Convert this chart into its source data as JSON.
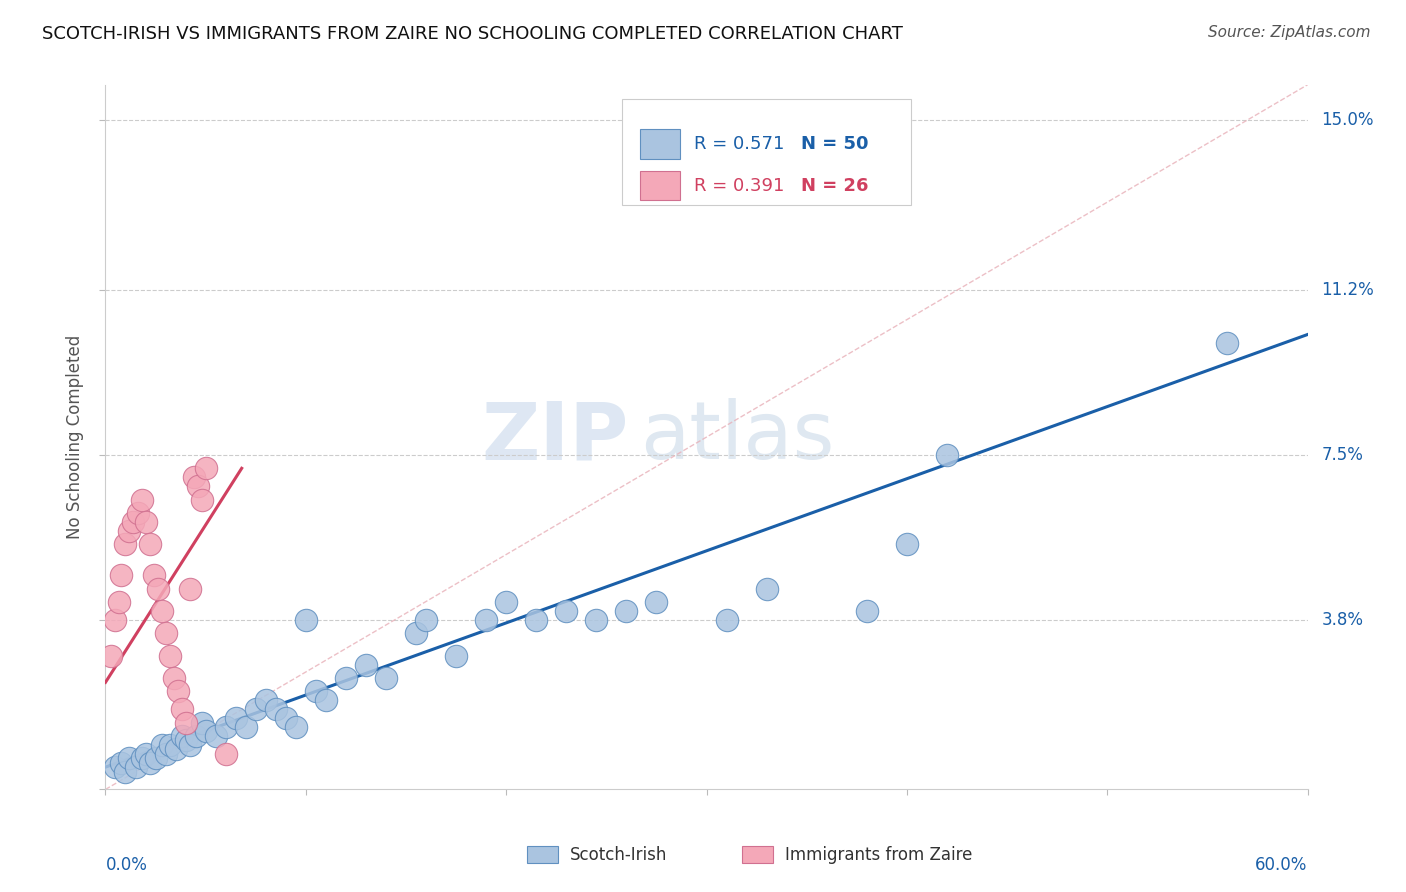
{
  "title": "SCOTCH-IRISH VS IMMIGRANTS FROM ZAIRE NO SCHOOLING COMPLETED CORRELATION CHART",
  "source": "Source: ZipAtlas.com",
  "ylabel": "No Schooling Completed",
  "y_ticks": [
    0.0,
    0.038,
    0.075,
    0.112,
    0.15
  ],
  "y_tick_labels": [
    "",
    "3.8%",
    "7.5%",
    "11.2%",
    "15.0%"
  ],
  "xmin": 0.0,
  "xmax": 0.6,
  "ymin": 0.0,
  "ymax": 0.158,
  "legend_r1": "R = 0.571",
  "legend_n1": "N = 50",
  "legend_r2": "R = 0.391",
  "legend_n2": "N = 26",
  "legend_label1": "Scotch-Irish",
  "legend_label2": "Immigrants from Zaire",
  "color_blue": "#aac4e0",
  "color_blue_edge": "#6090c0",
  "color_blue_line": "#1a5fa8",
  "color_pink": "#f4a8b8",
  "color_pink_edge": "#d07090",
  "color_pink_line": "#d04060",
  "color_r_blue": "#1a5fa8",
  "color_r_pink": "#d04060",
  "color_diag": "#e8b0b8",
  "watermark_zip": "ZIP",
  "watermark_atlas": "atlas",
  "scotch_irish_x": [
    0.005,
    0.008,
    0.01,
    0.012,
    0.015,
    0.018,
    0.02,
    0.022,
    0.025,
    0.028,
    0.03,
    0.032,
    0.035,
    0.038,
    0.04,
    0.042,
    0.045,
    0.048,
    0.05,
    0.055,
    0.06,
    0.065,
    0.07,
    0.075,
    0.08,
    0.085,
    0.09,
    0.095,
    0.1,
    0.105,
    0.11,
    0.12,
    0.13,
    0.14,
    0.155,
    0.16,
    0.175,
    0.19,
    0.2,
    0.215,
    0.23,
    0.245,
    0.26,
    0.275,
    0.31,
    0.33,
    0.38,
    0.4,
    0.42,
    0.56
  ],
  "scotch_irish_y": [
    0.005,
    0.006,
    0.004,
    0.007,
    0.005,
    0.007,
    0.008,
    0.006,
    0.007,
    0.01,
    0.008,
    0.01,
    0.009,
    0.012,
    0.011,
    0.01,
    0.012,
    0.015,
    0.013,
    0.012,
    0.014,
    0.016,
    0.014,
    0.018,
    0.02,
    0.018,
    0.016,
    0.014,
    0.038,
    0.022,
    0.02,
    0.025,
    0.028,
    0.025,
    0.035,
    0.038,
    0.03,
    0.038,
    0.042,
    0.038,
    0.04,
    0.038,
    0.04,
    0.042,
    0.038,
    0.045,
    0.04,
    0.055,
    0.075,
    0.1
  ],
  "zaire_x": [
    0.003,
    0.005,
    0.007,
    0.008,
    0.01,
    0.012,
    0.014,
    0.016,
    0.018,
    0.02,
    0.022,
    0.024,
    0.026,
    0.028,
    0.03,
    0.032,
    0.034,
    0.036,
    0.038,
    0.04,
    0.042,
    0.044,
    0.046,
    0.048,
    0.05,
    0.06
  ],
  "zaire_y": [
    0.03,
    0.038,
    0.042,
    0.048,
    0.055,
    0.058,
    0.06,
    0.062,
    0.065,
    0.06,
    0.055,
    0.048,
    0.045,
    0.04,
    0.035,
    0.03,
    0.025,
    0.022,
    0.018,
    0.015,
    0.045,
    0.07,
    0.068,
    0.065,
    0.072,
    0.008
  ],
  "blue_line_x": [
    0.0,
    0.6
  ],
  "blue_line_y": [
    0.005,
    0.102
  ],
  "pink_line_x": [
    0.0,
    0.068
  ],
  "pink_line_y": [
    0.024,
    0.072
  ]
}
